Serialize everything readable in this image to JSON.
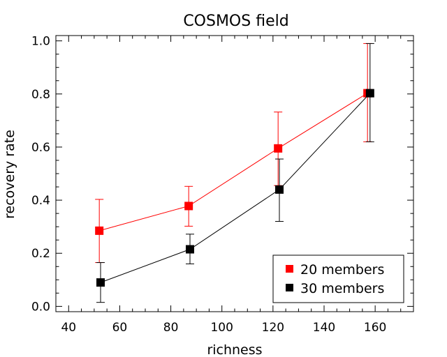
{
  "chart_data": {
    "type": "line",
    "title": "COSMOS field",
    "xlabel": "richness",
    "ylabel": "recovery rate",
    "xlim": [
      35,
      175
    ],
    "ylim": [
      -0.02,
      1.02
    ],
    "x_ticks": [
      "40",
      "60",
      "80",
      "100",
      "120",
      "140",
      "160"
    ],
    "y_ticks": [
      "0.0",
      "0.2",
      "0.4",
      "0.6",
      "0.8",
      "1.0"
    ],
    "legend_position": "bottom-right",
    "grid": false,
    "series": [
      {
        "name": "20 members",
        "color": "#ff0000",
        "marker": "square",
        "points": [
          {
            "x": 52,
            "y": 0.285,
            "err_low": 0.165,
            "err_high": 0.403
          },
          {
            "x": 87,
            "y": 0.378,
            "err_low": 0.302,
            "err_high": 0.452
          },
          {
            "x": 122,
            "y": 0.595,
            "err_low": 0.455,
            "err_high": 0.732
          },
          {
            "x": 157,
            "y": 0.803,
            "err_low": 0.62,
            "err_high": 0.99
          }
        ]
      },
      {
        "name": "30 members",
        "color": "#000000",
        "marker": "square",
        "points": [
          {
            "x": 52.5,
            "y": 0.09,
            "err_low": 0.015,
            "err_high": 0.165
          },
          {
            "x": 87.5,
            "y": 0.215,
            "err_low": 0.16,
            "err_high": 0.272
          },
          {
            "x": 122.5,
            "y": 0.44,
            "err_low": 0.32,
            "err_high": 0.555
          },
          {
            "x": 158,
            "y": 0.803,
            "err_low": 0.62,
            "err_high": 0.99
          }
        ]
      }
    ]
  }
}
